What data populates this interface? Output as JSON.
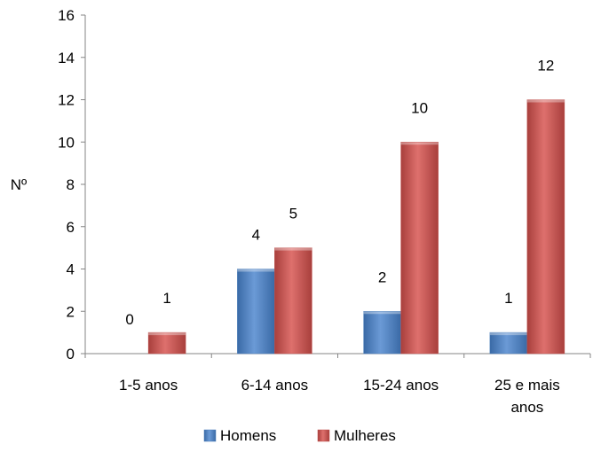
{
  "chart_data": {
    "type": "bar",
    "title": "",
    "xlabel": "",
    "ylabel": "Nº",
    "ylim": [
      0,
      16
    ],
    "yticks": [
      0,
      2,
      4,
      6,
      8,
      10,
      12,
      14,
      16
    ],
    "categories": [
      [
        "1-5 anos"
      ],
      [
        "6-14 anos"
      ],
      [
        "15-24 anos"
      ],
      [
        "25 e mais",
        "anos"
      ]
    ],
    "series": [
      {
        "name": "Homens",
        "values": [
          0,
          4,
          2,
          1
        ],
        "color": "#4a7ebb"
      },
      {
        "name": "Mulheres",
        "values": [
          1,
          5,
          10,
          12
        ],
        "color": "#c0504d"
      }
    ],
    "grid": false,
    "legend": "bottom"
  }
}
